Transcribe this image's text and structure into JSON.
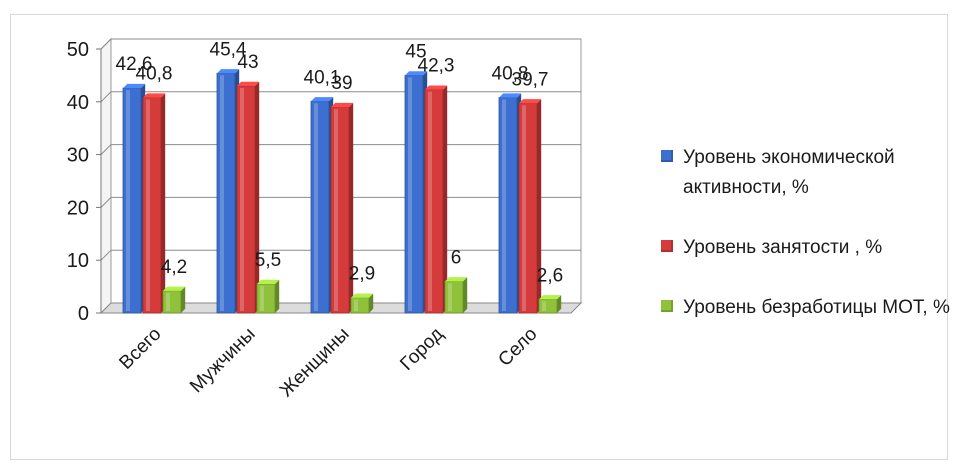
{
  "chart_data": {
    "type": "bar",
    "categories": [
      "Всего",
      "Мужчины",
      "Женщины",
      "Город",
      "Село"
    ],
    "series": [
      {
        "name": "Уровень экономической активности, %",
        "values": [
          42.6,
          45.4,
          40.1,
          45,
          40.8
        ],
        "color": "#3d6fd0"
      },
      {
        "name": "Уровень  занятости , %",
        "values": [
          40.8,
          43,
          39,
          42.3,
          39.7
        ],
        "color": "#d63b3b"
      },
      {
        "name": "Уровень безработицы МОТ, %",
        "values": [
          4.2,
          5.5,
          2.9,
          6,
          2.6
        ],
        "color": "#8fc23a"
      }
    ],
    "data_labels": [
      [
        "42,6",
        "45,4",
        "40,1",
        "45",
        "40,8"
      ],
      [
        "40,8",
        "43",
        "39",
        "42,3",
        "39,7"
      ],
      [
        "4,2",
        "5,5",
        "2,9",
        "6",
        "2,6"
      ]
    ],
    "y_ticks": [
      "0",
      "10",
      "20",
      "30",
      "40",
      "50"
    ],
    "ylim": [
      0,
      50
    ],
    "grid": true,
    "legend_position": "right",
    "title": "",
    "xlabel": "",
    "ylabel": ""
  }
}
